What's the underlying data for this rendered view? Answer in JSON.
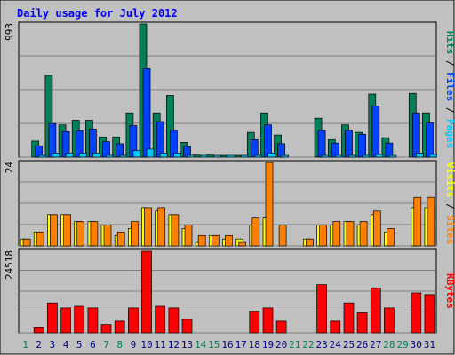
{
  "chart_data": {
    "type": "bar",
    "title": "Daily usage for July 2012",
    "categories": [
      "1",
      "2",
      "3",
      "4",
      "5",
      "6",
      "7",
      "8",
      "9",
      "10",
      "11",
      "12",
      "13",
      "14",
      "15",
      "16",
      "17",
      "18",
      "19",
      "20",
      "21",
      "22",
      "23",
      "24",
      "25",
      "26",
      "27",
      "28",
      "29",
      "30",
      "31"
    ],
    "weekend_days": [
      "1",
      "7",
      "8",
      "14",
      "15",
      "21",
      "22",
      "28",
      "29"
    ],
    "panels": [
      {
        "name": "top",
        "ymax_label": "993",
        "ylim": [
          0,
          993
        ],
        "right_labels": [
          "Pages",
          "Files",
          "Hits"
        ],
        "series": [
          {
            "name": "Hits",
            "color": "#00805a",
            "values": [
              0,
              120,
              610,
              240,
              275,
              275,
              150,
              150,
              330,
              993,
              330,
              460,
              110,
              15,
              15,
              5,
              5,
              185,
              330,
              165,
              0,
              0,
              290,
              130,
              240,
              185,
              470,
              145,
              0,
              475,
              330
            ]
          },
          {
            "name": "Files",
            "color": "#0040ff",
            "values": [
              0,
              85,
              250,
              190,
              195,
              210,
              115,
              100,
              235,
              660,
              265,
              200,
              80,
              0,
              0,
              0,
              0,
              130,
              240,
              100,
              0,
              0,
              200,
              105,
              200,
              170,
              380,
              105,
              0,
              330,
              255
            ]
          },
          {
            "name": "Pages",
            "color": "#00c8ff",
            "values": [
              0,
              5,
              30,
              30,
              30,
              30,
              10,
              10,
              50,
              60,
              30,
              30,
              10,
              5,
              5,
              5,
              5,
              10,
              30,
              10,
              0,
              0,
              10,
              10,
              10,
              10,
              20,
              10,
              0,
              30,
              20
            ]
          }
        ]
      },
      {
        "name": "middle",
        "ymax_label": "24",
        "ylim": [
          0,
          24
        ],
        "right_labels": [
          "Sites",
          "Visits"
        ],
        "series": [
          {
            "name": "Visits",
            "color": "#ffff00",
            "values": [
              2,
              4,
              9,
              9,
              7,
              7,
              6,
              3,
              5,
              11,
              10,
              9,
              5,
              1,
              3,
              2,
              2,
              6,
              8,
              0,
              0,
              2,
              6,
              6,
              7,
              6,
              9,
              4,
              0,
              11,
              11
            ]
          },
          {
            "name": "Sites",
            "color": "#ff8000",
            "values": [
              2,
              4,
              9,
              9,
              7,
              7,
              6,
              4,
              7,
              11,
              11,
              9,
              6,
              3,
              3,
              3,
              1,
              8,
              24,
              6,
              0,
              2,
              6,
              7,
              7,
              7,
              10,
              5,
              0,
              14,
              14
            ]
          }
        ]
      },
      {
        "name": "bottom",
        "ymax_label": "24518",
        "ylim": [
          0,
          24518
        ],
        "right_labels": [
          "KBytes"
        ],
        "series": [
          {
            "name": "KBytes",
            "color": "#ff0000",
            "values": [
              0,
              1500,
              9000,
              7500,
              8000,
              7500,
              2500,
              3500,
              7500,
              24518,
              8000,
              7500,
              4000,
              0,
              0,
              0,
              0,
              6500,
              7500,
              3500,
              0,
              0,
              14500,
              3500,
              9000,
              6000,
              13500,
              7500,
              0,
              12000,
              11500
            ]
          }
        ]
      }
    ],
    "colors": {
      "background": "#c0c0c0",
      "title": "#0000ff",
      "weekend": "#00805a",
      "weekday": "#000080",
      "grid": "#808080"
    }
  }
}
